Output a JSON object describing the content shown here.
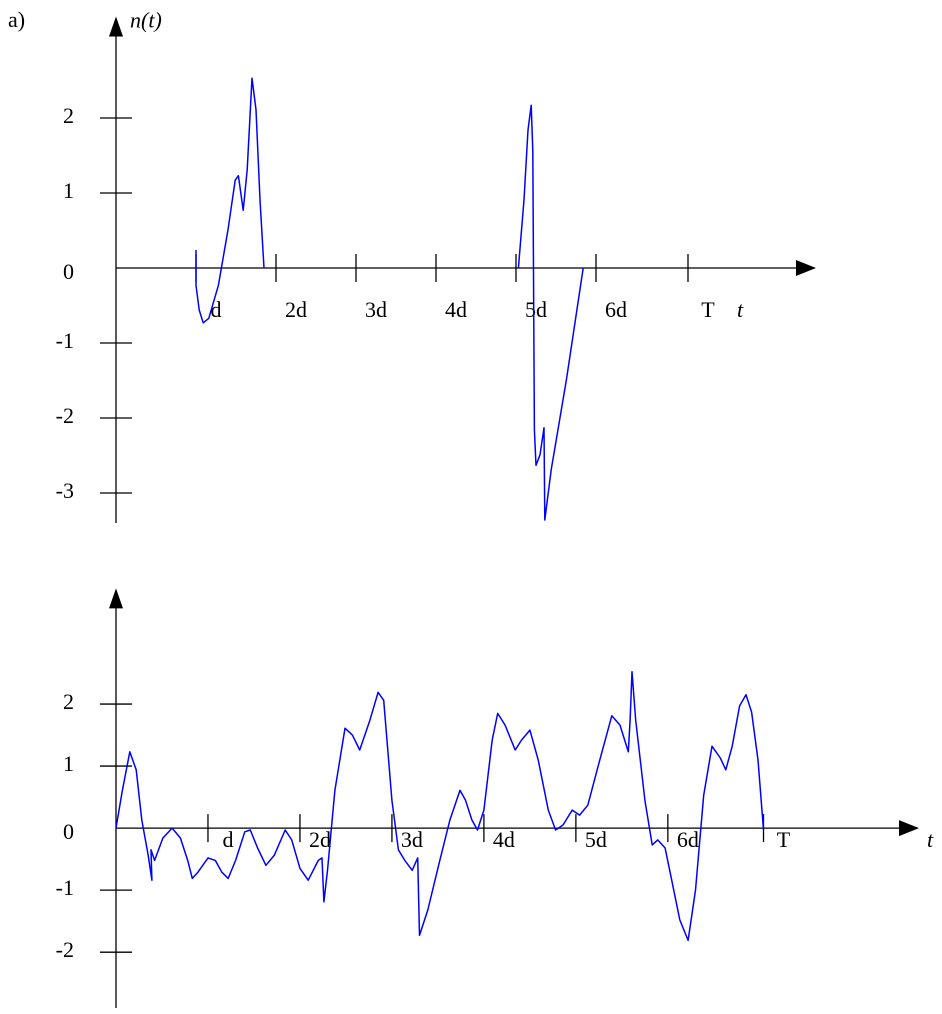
{
  "label": "a)",
  "chart_data": [
    {
      "type": "line",
      "ylabel": "n(t)",
      "xlabel": "t",
      "xlim": [
        0,
        8.6
      ],
      "ylim": [
        -3.4,
        3.3
      ],
      "xticks": [
        {
          "value": 1,
          "label": "d"
        },
        {
          "value": 2,
          "label": "2d"
        },
        {
          "value": 3,
          "label": "3d"
        },
        {
          "value": 4,
          "label": "4d"
        },
        {
          "value": 5,
          "label": "5d"
        },
        {
          "value": 6,
          "label": "6d"
        },
        {
          "value": 7.15,
          "label": "T"
        }
      ],
      "yticks": [
        -3,
        -2,
        -1,
        0,
        1,
        2
      ],
      "x": [
        1.0,
        1.0,
        1.04,
        1.09,
        1.16,
        1.28,
        1.4,
        1.49,
        1.53,
        1.59,
        1.64,
        1.7,
        1.75,
        1.8,
        1.85,
        null,
        5.03,
        5.1,
        5.15,
        5.19,
        5.21,
        5.23,
        5.25,
        5.3,
        5.35,
        5.36,
        5.44,
        5.63,
        5.84
      ],
      "series": [
        {
          "color": "#0000ff",
          "values": [
            0.24,
            -0.23,
            -0.56,
            -0.73,
            -0.67,
            -0.23,
            0.51,
            1.17,
            1.23,
            0.77,
            1.31,
            2.53,
            2.11,
            0.91,
            0,
            null,
            0,
            0.91,
            1.84,
            2.17,
            1.57,
            -2.16,
            -2.63,
            -2.49,
            -2.13,
            -3.36,
            -2.69,
            -1.49,
            0
          ]
        }
      ]
    },
    {
      "type": "line",
      "xlabel": "t",
      "xlim": [
        0,
        8.6
      ],
      "ylim": [
        -2.9,
        3.8
      ],
      "xticks": [
        {
          "value": 1,
          "label": "d"
        },
        {
          "value": 2,
          "label": "2d"
        },
        {
          "value": 3,
          "label": "3d"
        },
        {
          "value": 4,
          "label": "4d"
        },
        {
          "value": 5,
          "label": "5d"
        },
        {
          "value": 6,
          "label": "6d"
        },
        {
          "value": 7.04,
          "label": "T"
        }
      ],
      "yticks": [
        -2,
        -1,
        0,
        1,
        2
      ],
      "x": [
        0,
        0.07,
        0.15,
        0.22,
        0.28,
        0.35,
        0.39,
        0.38,
        0.42,
        0.51,
        0.61,
        0.7,
        0.78,
        0.83,
        0.89,
        1.0,
        1.08,
        1.15,
        1.22,
        1.3,
        1.4,
        1.46,
        1.54,
        1.63,
        1.72,
        1.84,
        1.91,
        2.0,
        2.09,
        2.2,
        2.24,
        2.26,
        2.3,
        2.38,
        2.49,
        2.57,
        2.65,
        2.76,
        2.85,
        2.91,
        3.0,
        3.07,
        3.14,
        3.22,
        3.28,
        3.3,
        3.39,
        3.52,
        3.63,
        3.74,
        3.8,
        3.87,
        3.93,
        4.0,
        4.09,
        4.15,
        4.23,
        4.34,
        4.41,
        4.5,
        4.59,
        4.7,
        4.78,
        4.86,
        4.96,
        5.04,
        5.13,
        5.26,
        5.39,
        5.48,
        5.57,
        5.59,
        5.61,
        5.65,
        5.75,
        5.83,
        5.89,
        5.97,
        6.02,
        6.13,
        6.22,
        6.3,
        6.39,
        6.48,
        6.57,
        6.63,
        6.7,
        6.78,
        6.85,
        6.91,
        6.98,
        7.04
      ],
      "series": [
        {
          "color": "#0000ff",
          "values": [
            0,
            0.61,
            1.23,
            0.94,
            0.13,
            -0.44,
            -0.84,
            -0.35,
            -0.52,
            -0.16,
            0,
            -0.16,
            -0.52,
            -0.81,
            -0.71,
            -0.48,
            -0.52,
            -0.71,
            -0.81,
            -0.52,
            -0.06,
            -0.03,
            -0.32,
            -0.6,
            -0.44,
            -0.03,
            -0.19,
            -0.65,
            -0.84,
            -0.52,
            -0.48,
            -1.19,
            -0.68,
            0.61,
            1.61,
            1.5,
            1.26,
            1.74,
            2.19,
            2.06,
            0.45,
            -0.35,
            -0.52,
            -0.68,
            -0.48,
            -1.73,
            -1.32,
            -0.52,
            0.13,
            0.61,
            0.45,
            0.13,
            -0.03,
            0.29,
            1.42,
            1.85,
            1.66,
            1.26,
            1.42,
            1.58,
            1.1,
            0.29,
            -0.03,
            0.05,
            0.29,
            0.21,
            0.37,
            1.1,
            1.81,
            1.66,
            1.23,
            1.74,
            2.52,
            1.74,
            0.45,
            -0.27,
            -0.19,
            -0.32,
            -0.68,
            -1.48,
            -1.81,
            -1.0,
            0.53,
            1.32,
            1.13,
            0.94,
            1.32,
            1.97,
            2.15,
            1.87,
            1.1,
            -0.03
          ]
        }
      ]
    }
  ]
}
